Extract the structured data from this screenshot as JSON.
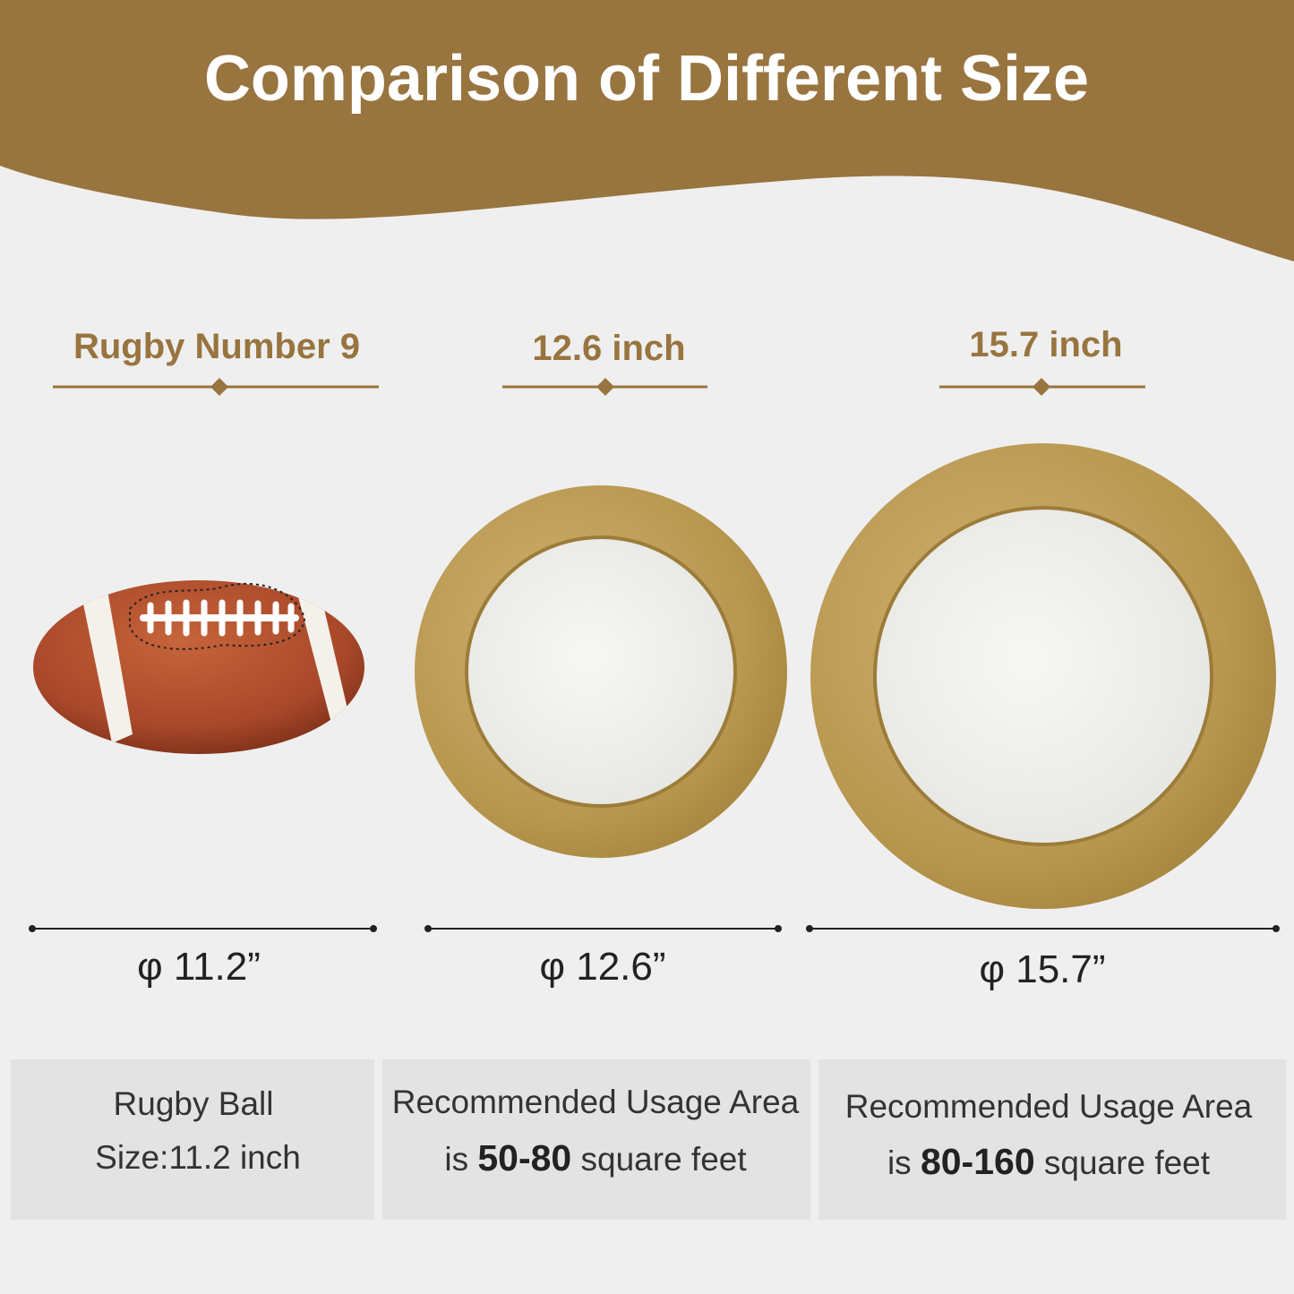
{
  "header": {
    "title": "Comparison of Different Size"
  },
  "columns": [
    {
      "heading": "Rugby Number 9",
      "diameter": "φ 11.2”",
      "description": {
        "line1": "Rugby Ball",
        "line2": [
          "Size:11.2 inch"
        ]
      }
    },
    {
      "heading": "12.6 inch",
      "diameter": "φ 12.6”",
      "description": {
        "line1": "Recommended Usage Area",
        "line2": [
          "is ",
          "50-80",
          " square feet"
        ]
      }
    },
    {
      "heading": "15.7 inch",
      "diameter": "φ 15.7”",
      "description": {
        "line1": "Recommended Usage Area",
        "line2": [
          "is ",
          "80-160",
          " square feet"
        ]
      }
    }
  ]
}
